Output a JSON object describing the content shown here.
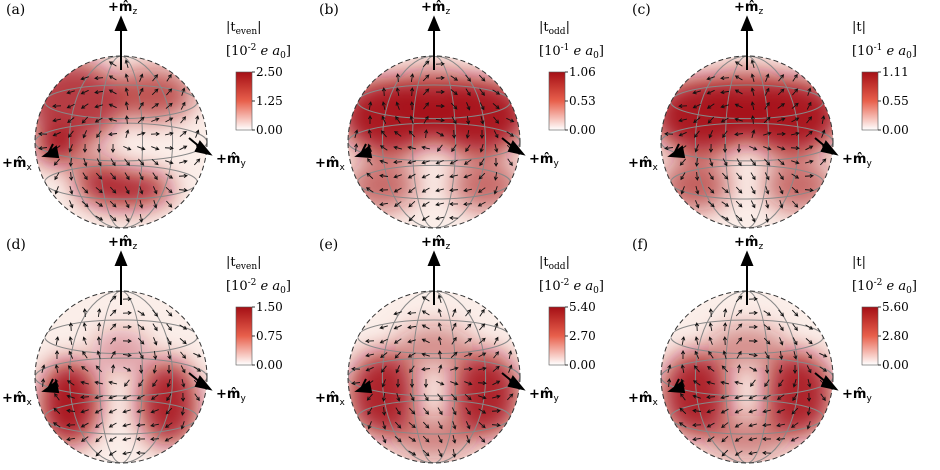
{
  "panels": [
    {
      "id": "a",
      "label": "(a)",
      "quantity": "|t",
      "quantity_sub": "even",
      "quantity_close": "|",
      "unit_exp": "-2",
      "ticks": [
        "2.50",
        "1.25",
        "0.00"
      ],
      "pattern": "even1",
      "axes": {
        "z": "+m̂",
        "z_sub": "z",
        "x": "+m̂",
        "x_sub": "x",
        "y": "+m̂",
        "y_sub": "y"
      }
    },
    {
      "id": "b",
      "label": "(b)",
      "quantity": "|t",
      "quantity_sub": "odd",
      "quantity_close": "|",
      "unit_exp": "-1",
      "ticks": [
        "1.06",
        "0.53",
        "0.00"
      ],
      "pattern": "odd1",
      "axes": {
        "z": "+m̂",
        "z_sub": "z",
        "x": "+m̂",
        "x_sub": "x",
        "y": "+m̂",
        "y_sub": "y"
      }
    },
    {
      "id": "c",
      "label": "(c)",
      "quantity": "|t",
      "quantity_sub": "",
      "quantity_close": "|",
      "unit_exp": "-1",
      "ticks": [
        "1.11",
        "0.55",
        "0.00"
      ],
      "pattern": "total1",
      "axes": {
        "z": "+m̂",
        "z_sub": "z",
        "x": "+m̂",
        "x_sub": "x",
        "y": "+m̂",
        "y_sub": "y"
      }
    },
    {
      "id": "d",
      "label": "(d)",
      "quantity": "|t",
      "quantity_sub": "even",
      "quantity_close": "|",
      "unit_exp": "-2",
      "ticks": [
        "1.50",
        "0.75",
        "0.00"
      ],
      "pattern": "even2",
      "axes": {
        "z": "+m̂",
        "z_sub": "z",
        "x": "+m̂",
        "x_sub": "x",
        "y": "+m̂",
        "y_sub": "y"
      }
    },
    {
      "id": "e",
      "label": "(e)",
      "quantity": "|t",
      "quantity_sub": "odd",
      "quantity_close": "|",
      "unit_exp": "-2",
      "ticks": [
        "5.40",
        "2.70",
        "0.00"
      ],
      "pattern": "odd2",
      "axes": {
        "z": "+m̂",
        "z_sub": "z",
        "x": "+m̂",
        "x_sub": "x",
        "y": "+m̂",
        "y_sub": "y"
      }
    },
    {
      "id": "f",
      "label": "(f)",
      "quantity": "|t",
      "quantity_sub": "",
      "quantity_close": "|",
      "unit_exp": "-2",
      "ticks": [
        "5.60",
        "2.80",
        "0.00"
      ],
      "pattern": "total2",
      "axes": {
        "z": "+m̂",
        "z_sub": "z",
        "x": "+m̂",
        "x_sub": "x",
        "y": "+m̂",
        "y_sub": "y"
      }
    }
  ],
  "unit_prefix": "[10",
  "unit_suffix": " e a",
  "unit_sub": "0",
  "unit_close": "]",
  "colors": {
    "high": "#a50f15",
    "mid": "#e8604c",
    "low": "#ffffff",
    "grid": "#888888",
    "arrow": "#111111"
  }
}
